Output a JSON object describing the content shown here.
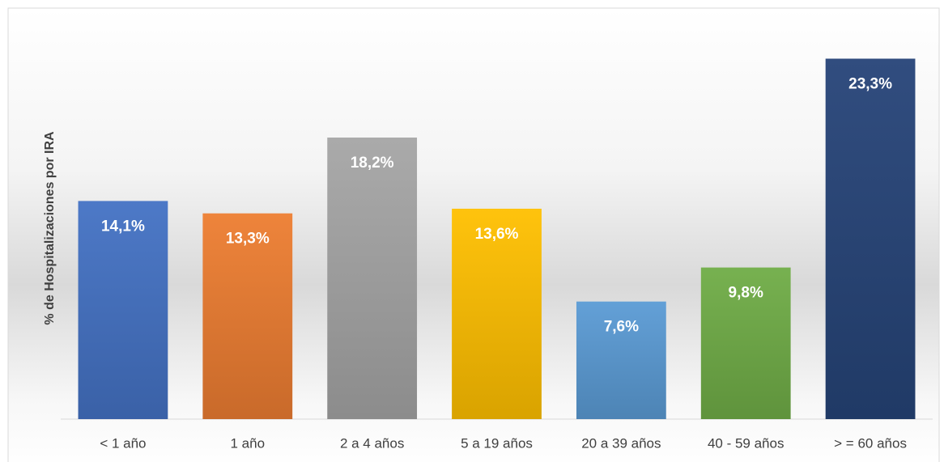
{
  "chart_data": {
    "type": "bar",
    "y_label": "% de Hospitalizaciones por IRA",
    "categories": [
      "< 1 año",
      "1 año",
      "2 a 4 años",
      "5 a 19 años",
      "20 a 39 años",
      "40 - 59 años",
      "> = 60 años"
    ],
    "values": [
      14.1,
      13.3,
      18.2,
      13.6,
      7.6,
      9.8,
      23.3
    ],
    "value_labels": [
      "14,1%",
      "13,3%",
      "18,2%",
      "13,6%",
      "7,6%",
      "9,8%",
      "23,3%"
    ],
    "colors": [
      "#4472c4",
      "#ed7d31",
      "#a5a5a5",
      "#ffc000",
      "#5b9bd5",
      "#70ad47",
      "#264478"
    ],
    "ylim": [
      0,
      25
    ]
  }
}
